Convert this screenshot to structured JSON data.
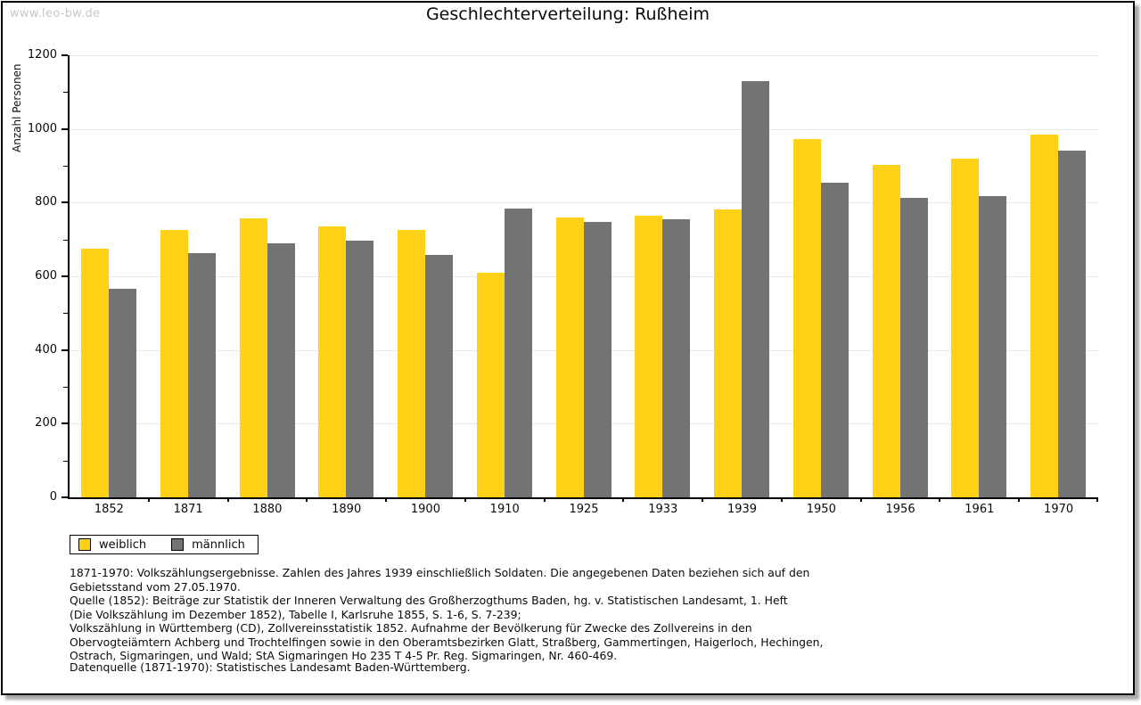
{
  "watermark": "www.leo-bw.de",
  "title": "Geschlechterverteilung: Rußheim",
  "chart_data": {
    "type": "bar",
    "title": "Geschlechterverteilung: Rußheim",
    "xlabel": "",
    "ylabel": "Anzahl Personen",
    "ylim": [
      0,
      1200
    ],
    "ytick_interval": 200,
    "minor_ytick_interval": 100,
    "grid": true,
    "legend_position": "bottom-left",
    "categories": [
      "1852",
      "1871",
      "1880",
      "1890",
      "1900",
      "1910",
      "1925",
      "1933",
      "1939",
      "1950",
      "1956",
      "1961",
      "1970"
    ],
    "series": [
      {
        "name": "weiblich",
        "color": "#fcd116",
        "values": [
          675,
          727,
          758,
          735,
          726,
          610,
          760,
          764,
          782,
          973,
          903,
          920,
          984
        ]
      },
      {
        "name": "männlich",
        "color": "#737373",
        "values": [
          565,
          663,
          690,
          698,
          657,
          783,
          748,
          754,
          1131,
          855,
          812,
          818,
          940
        ]
      }
    ]
  },
  "footnotes": [
    "1871-1970: Volkszählungsergebnisse. Zahlen des Jahres 1939 einschließlich Soldaten. Die angegebenen Daten beziehen sich auf den",
    "Gebietsstand vom 27.05.1970.",
    "Quelle (1852): Beiträge zur Statistik der Inneren Verwaltung des Großherzogthums Baden, hg. v. Statistischen Landesamt, 1. Heft",
    "(Die Volkszählung im Dezember 1852), Tabelle I, Karlsruhe 1855, S. 1-6, S. 7-239;",
    "Volkszählung in Württemberg (CD), Zollvereinsstatistik 1852. Aufnahme der Bevölkerung für Zwecke des Zollvereins in den",
    "Obervogteiämtern Achberg und Trochtelfingen sowie in den Oberamtsbezirken Glatt, Straßberg, Gammertingen, Haigerloch, Hechingen,",
    "Ostrach, Sigmaringen, und Wald; StA Sigmaringen Ho 235 T 4-5 Pr. Reg. Sigmaringen, Nr. 460-469."
  ],
  "datasource": "Datenquelle (1871-1970): Statistisches Landesamt Baden-Württemberg.",
  "colors": {
    "female_bar": "#fcd116",
    "male_bar": "#737373",
    "gridline": "#e9e9e9",
    "axis": "#000000",
    "watermark": "#c7c7c7",
    "frame_border": "#000000"
  }
}
